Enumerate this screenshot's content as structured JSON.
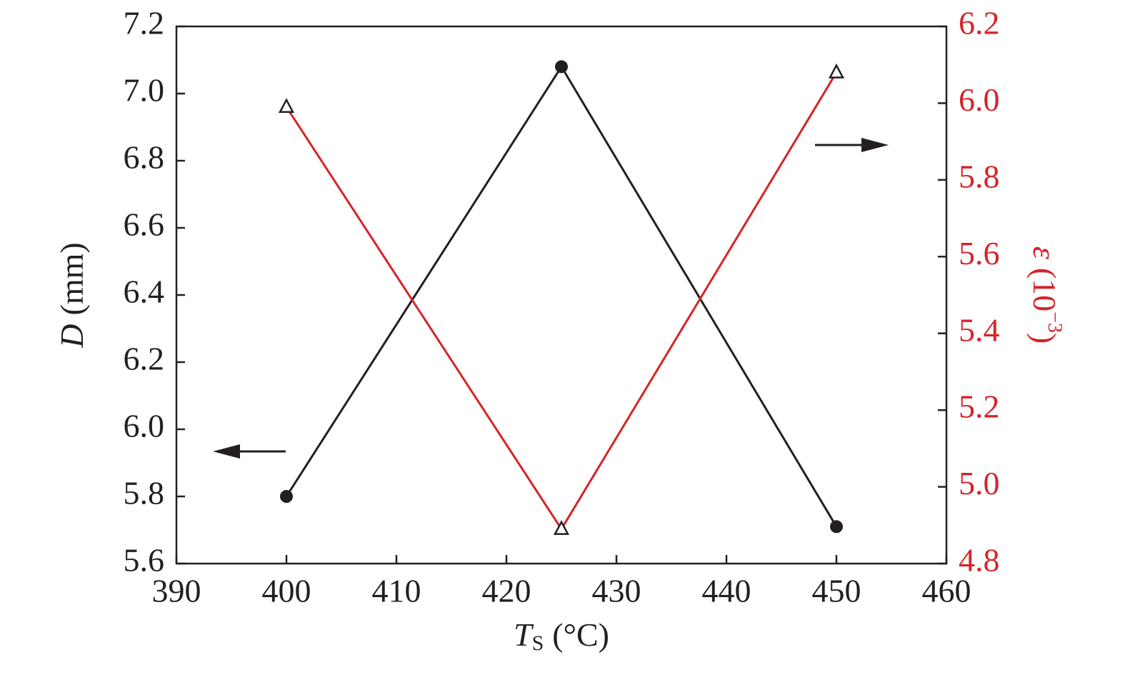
{
  "chart_data": {
    "type": "line",
    "x": [
      400,
      425,
      450
    ],
    "xlim": [
      390,
      460
    ],
    "xticks": [
      390,
      400,
      410,
      420,
      430,
      440,
      450,
      460
    ],
    "ylim": [
      5.6,
      7.2
    ],
    "yticks": [
      5.6,
      5.8,
      {
        "value": 6,
        "label": "6.0"
      },
      6.2,
      6.4,
      6.6,
      6.8,
      {
        "value": 7,
        "label": "7.0"
      },
      7.2
    ],
    "y2lim": [
      4.8,
      6.2
    ],
    "y2ticks": [
      4.8,
      {
        "value": 5,
        "label": "5.0"
      },
      5.2,
      5.4,
      5.6,
      5.8,
      {
        "value": 6,
        "label": "6.0"
      },
      6.2
    ],
    "xlabel": {
      "symbol": "T",
      "subscript": "S",
      "unit": "(°C)"
    },
    "ylabel": {
      "symbol": "D",
      "unit": "(mm)"
    },
    "y2label": {
      "symbol": "ε",
      "unit": "(10",
      "exponent": "−3",
      "close": ")"
    },
    "series": [
      {
        "name": "D",
        "color": "#231f20",
        "marker": "circle",
        "values": [
          5.8,
          7.08,
          5.71
        ]
      },
      {
        "name": "ε",
        "color": "#d7232a",
        "marker": "triangle",
        "axis": "y2",
        "values": [
          5.99,
          4.89,
          6.08
        ]
      }
    ]
  }
}
